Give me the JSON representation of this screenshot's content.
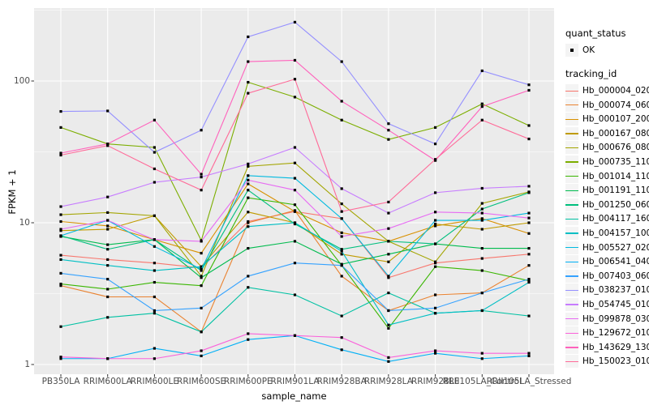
{
  "figure": {
    "y_axis": {
      "title": "FPKM + 1",
      "ticks": [
        "100",
        "10",
        "1"
      ]
    },
    "x_axis": {
      "title": "sample_name"
    },
    "legend": {
      "quant_status_title": "quant_status",
      "quant_status_ok_label": "OK",
      "tracking_title": "tracking_id"
    }
  },
  "chart_data": {
    "type": "line",
    "title": "",
    "xlabel": "sample_name",
    "ylabel": "FPKM + 1",
    "y_scale": "log10",
    "ylim": [
      1,
      320
    ],
    "y_major_ticks": [
      1,
      10,
      100
    ],
    "y_minor_ticks": [
      3.1623,
      31.623,
      316.23
    ],
    "grid": true,
    "panel_background": "#EBEBEB",
    "gridline_color": "#FFFFFF",
    "marker": "small-black-square",
    "legend_position": "right",
    "quant_status": "OK",
    "categories": [
      "PB350LA",
      "RRIM600LA",
      "RRIM600LE",
      "RRIM600SE",
      "RRIM600PE",
      "RRIM901LA",
      "RRIM928BA",
      "RRIM928LA",
      "RRIM928LE",
      "RRII105LA_Control",
      "RRII105LA_Stressed"
    ],
    "series": [
      {
        "name": "Hb_000004_020",
        "color": "#F8766D",
        "values": [
          5.9,
          5.5,
          5.2,
          4.8,
          10.2,
          12.0,
          10.7,
          4.1,
          5.2,
          5.6,
          6.0
        ]
      },
      {
        "name": "Hb_000074_060",
        "color": "#EA8331",
        "values": [
          3.6,
          3.0,
          3.0,
          1.7,
          10.0,
          12.2,
          4.2,
          2.4,
          3.1,
          3.2,
          5.0
        ]
      },
      {
        "name": "Hb_000107_200",
        "color": "#D89000",
        "values": [
          10.2,
          9.5,
          7.6,
          6.1,
          18.8,
          12.0,
          8.5,
          7.4,
          9.5,
          10.7,
          8.4
        ]
      },
      {
        "name": "Hb_000167_080",
        "color": "#C09B00",
        "values": [
          8.8,
          9.0,
          11.2,
          4.9,
          11.9,
          10.0,
          6.0,
          5.3,
          9.8,
          9.0,
          10.0
        ]
      },
      {
        "name": "Hb_000676_080",
        "color": "#A3A500",
        "values": [
          11.4,
          11.8,
          11.2,
          4.2,
          25.0,
          26.4,
          13.6,
          7.4,
          5.3,
          13.7,
          16.5
        ]
      },
      {
        "name": "Hb_000735_110",
        "color": "#7CAE00",
        "values": [
          47,
          36,
          34,
          7.5,
          98,
          77,
          53,
          38.7,
          47,
          69,
          48.5
        ]
      },
      {
        "name": "Hb_001014_110",
        "color": "#39B600",
        "values": [
          3.7,
          3.4,
          3.8,
          3.6,
          15.0,
          13.4,
          5.0,
          1.8,
          4.9,
          4.6,
          3.9
        ]
      },
      {
        "name": "Hb_001191_110",
        "color": "#00BB4E",
        "values": [
          8.0,
          7.0,
          7.6,
          4.1,
          6.6,
          7.4,
          5.1,
          6.0,
          7.1,
          6.6,
          6.6
        ]
      },
      {
        "name": "Hb_001250_060",
        "color": "#00BF7D",
        "values": [
          8.1,
          6.5,
          7.6,
          4.6,
          17.0,
          9.8,
          6.5,
          7.4,
          7.1,
          12.5,
          16.3
        ]
      },
      {
        "name": "Hb_004117_160",
        "color": "#00C1A3",
        "values": [
          1.85,
          2.15,
          2.3,
          1.7,
          3.5,
          3.1,
          2.2,
          3.2,
          2.3,
          2.4,
          2.2
        ]
      },
      {
        "name": "Hb_004157_100",
        "color": "#00BFC4",
        "values": [
          5.5,
          5.0,
          4.6,
          4.9,
          9.4,
          10.0,
          6.3,
          1.9,
          2.3,
          2.4,
          3.8
        ]
      },
      {
        "name": "Hb_005527_020",
        "color": "#00BAE0",
        "values": [
          8.1,
          10.4,
          6.8,
          4.7,
          21.5,
          20.6,
          10.7,
          4.2,
          10.4,
          10.4,
          11.7
        ]
      },
      {
        "name": "Hb_006541_040",
        "color": "#00B0F6",
        "values": [
          1.1,
          1.1,
          1.3,
          1.15,
          1.5,
          1.6,
          1.27,
          1.05,
          1.2,
          1.1,
          1.15
        ]
      },
      {
        "name": "Hb_007403_060",
        "color": "#35A2FF",
        "values": [
          4.4,
          4.0,
          2.4,
          2.5,
          4.2,
          5.2,
          5.0,
          2.4,
          2.5,
          3.2,
          4.0
        ]
      },
      {
        "name": "Hb_038237_010",
        "color": "#9590FF",
        "values": [
          61,
          61.5,
          31.4,
          45,
          205,
          260,
          137,
          50,
          36,
          118,
          94
        ]
      },
      {
        "name": "Hb_054745_010",
        "color": "#C77CFF",
        "values": [
          13,
          15.2,
          19.3,
          21,
          26,
          34,
          17.4,
          11.7,
          16.3,
          17.5,
          18.1
        ]
      },
      {
        "name": "Hb_099878_030",
        "color": "#E76BF3",
        "values": [
          9.0,
          10.4,
          7.6,
          7.4,
          20,
          17,
          8.0,
          9.1,
          11.9,
          11.7,
          10.8
        ]
      },
      {
        "name": "Hb_129672_010",
        "color": "#FA62DB",
        "values": [
          1.13,
          1.1,
          1.1,
          1.25,
          1.65,
          1.6,
          1.55,
          1.12,
          1.25,
          1.2,
          1.2
        ]
      },
      {
        "name": "Hb_143629_130",
        "color": "#FF62BC",
        "values": [
          31,
          36,
          53,
          22,
          137,
          140,
          72,
          45,
          27.5,
          66,
          86
        ]
      },
      {
        "name": "Hb_150023_010",
        "color": "#FF6A98",
        "values": [
          30,
          35,
          24,
          17,
          82,
          103,
          12,
          14,
          28,
          53,
          39
        ]
      }
    ]
  }
}
